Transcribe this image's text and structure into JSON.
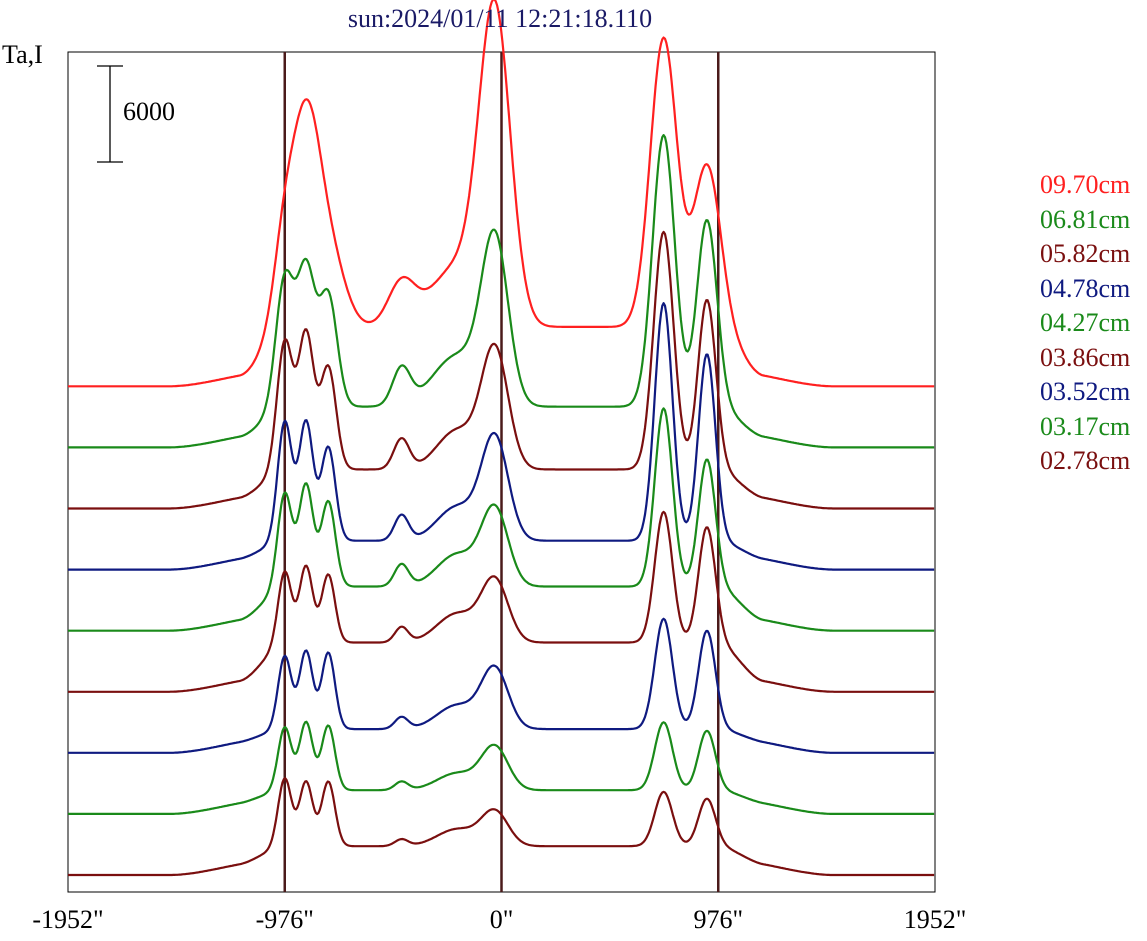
{
  "chart_data": {
    "type": "line",
    "title": "sun:2024/01/11 12:21:18.110",
    "ylabel": "Ta,I",
    "scale_bar": {
      "value": 6000,
      "label": "6000"
    },
    "xlim": [
      -1952,
      1952
    ],
    "x_ticks": [
      {
        "value": -1952,
        "label": "-1952\""
      },
      {
        "value": -976,
        "label": "-976\""
      },
      {
        "value": 0,
        "label": "0\""
      },
      {
        "value": 976,
        "label": "976\""
      },
      {
        "value": 1952,
        "label": "1952\""
      }
    ],
    "vertical_lines": [
      -976,
      0,
      976
    ],
    "stack_offset": 3600,
    "ylim": [
      -1000,
      48500
    ],
    "legend_placement": "right",
    "series": [
      {
        "name": "09.70cm",
        "color": "#ff2020",
        "baseline": 28800,
        "level_left": 0,
        "level_center": 2600,
        "level_right": 0,
        "peaks": [
          [
            -976,
            5000,
            50
          ],
          [
            -880,
            11000,
            60
          ],
          [
            -780,
            4500,
            70
          ],
          [
            -450,
            2500,
            60
          ],
          [
            -200,
            3500,
            120
          ],
          [
            -30,
            18000,
            70
          ],
          [
            730,
            17000,
            60
          ],
          [
            925,
            9500,
            60
          ]
        ]
      },
      {
        "name": "06.81cm",
        "color": "#1a8a1a",
        "baseline": 25200,
        "level_left": 0,
        "level_center": 1500,
        "level_right": 0,
        "peaks": [
          [
            -976,
            7500,
            40
          ],
          [
            -880,
            8000,
            40
          ],
          [
            -780,
            6500,
            40
          ],
          [
            -450,
            2200,
            40
          ],
          [
            -200,
            3000,
            110
          ],
          [
            -30,
            9500,
            60
          ],
          [
            730,
            16000,
            50
          ],
          [
            925,
            11000,
            45
          ]
        ]
      },
      {
        "name": "05.82cm",
        "color": "#7a0f0f",
        "baseline": 21600,
        "level_left": 0,
        "level_center": 1400,
        "level_right": 0,
        "peaks": [
          [
            -976,
            7500,
            35
          ],
          [
            -880,
            8000,
            35
          ],
          [
            -780,
            6000,
            35
          ],
          [
            -450,
            1800,
            35
          ],
          [
            -200,
            2300,
            90
          ],
          [
            -30,
            7000,
            60
          ],
          [
            730,
            14000,
            45
          ],
          [
            925,
            10000,
            40
          ]
        ]
      },
      {
        "name": "04.78cm",
        "color": "#0f1a80",
        "baseline": 18000,
        "level_left": 0,
        "level_center": 800,
        "level_right": 0,
        "peaks": [
          [
            -976,
            7000,
            32
          ],
          [
            -880,
            7000,
            32
          ],
          [
            -780,
            5500,
            32
          ],
          [
            -450,
            1500,
            32
          ],
          [
            -200,
            2000,
            90
          ],
          [
            -30,
            6000,
            60
          ],
          [
            730,
            14000,
            40
          ],
          [
            925,
            11000,
            38
          ]
        ]
      },
      {
        "name": "04.27cm",
        "color": "#1a8a1a",
        "baseline": 14400,
        "level_left": 0,
        "level_center": 1700,
        "level_right": 0,
        "peaks": [
          [
            -976,
            5500,
            32
          ],
          [
            -880,
            6000,
            32
          ],
          [
            -780,
            5000,
            32
          ],
          [
            -450,
            1300,
            32
          ],
          [
            -200,
            1900,
            90
          ],
          [
            -30,
            4500,
            60
          ],
          [
            730,
            10500,
            40
          ],
          [
            925,
            7500,
            38
          ]
        ]
      },
      {
        "name": "03.86cm",
        "color": "#7a0f0f",
        "baseline": 10800,
        "level_left": 0,
        "level_center": 2000,
        "level_right": 0,
        "peaks": [
          [
            -976,
            4200,
            30
          ],
          [
            -880,
            4500,
            30
          ],
          [
            -780,
            4000,
            30
          ],
          [
            -450,
            900,
            30
          ],
          [
            -200,
            1700,
            90
          ],
          [
            -30,
            3600,
            60
          ],
          [
            730,
            7700,
            40
          ],
          [
            925,
            6800,
            38
          ]
        ]
      },
      {
        "name": "03.52cm",
        "color": "#0f1a80",
        "baseline": 7200,
        "level_left": 0,
        "level_center": 500,
        "level_right": 0,
        "peaks": [
          [
            -976,
            4300,
            30
          ],
          [
            -880,
            4600,
            30
          ],
          [
            -780,
            4500,
            30
          ],
          [
            -450,
            700,
            30
          ],
          [
            -200,
            1400,
            90
          ],
          [
            -30,
            3500,
            60
          ],
          [
            730,
            6500,
            40
          ],
          [
            925,
            5800,
            38
          ]
        ]
      },
      {
        "name": "03.17cm",
        "color": "#1a8a1a",
        "baseline": 3600,
        "level_left": 0,
        "level_center": 500,
        "level_right": 0,
        "peaks": [
          [
            -976,
            3700,
            30
          ],
          [
            -880,
            4000,
            30
          ],
          [
            -780,
            3800,
            30
          ],
          [
            -450,
            500,
            30
          ],
          [
            -200,
            1000,
            90
          ],
          [
            -30,
            2500,
            60
          ],
          [
            730,
            4000,
            40
          ],
          [
            925,
            3500,
            38
          ]
        ]
      },
      {
        "name": "02.78cm",
        "color": "#7a0f0f",
        "baseline": 0,
        "level_left": 0,
        "level_center": 800,
        "level_right": 0,
        "peaks": [
          [
            -976,
            4000,
            30
          ],
          [
            -880,
            3800,
            30
          ],
          [
            -780,
            3800,
            30
          ],
          [
            -450,
            400,
            30
          ],
          [
            -200,
            1000,
            90
          ],
          [
            -30,
            2000,
            60
          ],
          [
            730,
            3200,
            40
          ],
          [
            925,
            2800,
            38
          ]
        ]
      }
    ]
  }
}
